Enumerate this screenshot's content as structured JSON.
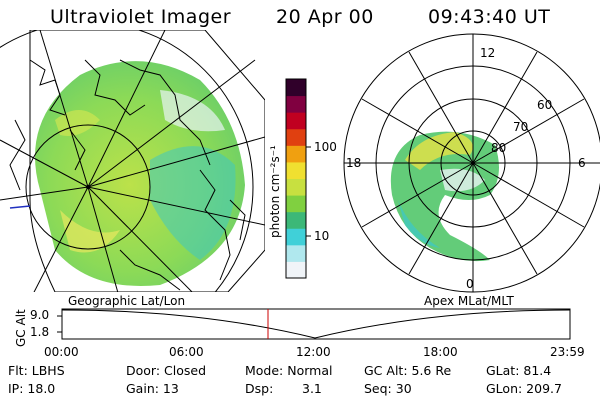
{
  "header": {
    "instrument": "Ultraviolet Imager",
    "date": "20 Apr 00",
    "time": "09:43:40 UT"
  },
  "colorbar": {
    "unit_label": "photon cm⁻²s⁻¹",
    "ticks": [
      "100",
      "10"
    ],
    "scale": "log",
    "colors": [
      "#f0f4f8",
      "#b0e8ee",
      "#40d0d8",
      "#3cb878",
      "#80d040",
      "#c8e040",
      "#f0e030",
      "#f0a010",
      "#e04010",
      "#c00020",
      "#800040",
      "#30002a"
    ]
  },
  "left_map": {
    "label": "Geographic Lat/Lon",
    "emission_colors": [
      "#7fd650",
      "#b8e040",
      "#e8e860",
      "#40c8c0"
    ]
  },
  "right_polar": {
    "label": "Apex MLat/MLT",
    "mlt_labels": {
      "top": "12",
      "left": "18",
      "right": "6",
      "bottom": "0"
    },
    "lat_labels": [
      "60",
      "70",
      "80"
    ]
  },
  "altitude_plot": {
    "ylabel": "GC Alt",
    "yticks": [
      "9.0",
      "1.8"
    ],
    "xticks": [
      "00:00",
      "06:00",
      "12:00",
      "18:00",
      "23:59"
    ],
    "current_time_color": "#cc0000"
  },
  "footer": {
    "flt": "Flt: LBHS",
    "ip": "IP: 18.0",
    "door": "Door: Closed",
    "gain": "Gain: 13",
    "mode": "Mode: Normal",
    "dsp_label": "Dsp:",
    "dsp_value": "3.1",
    "gcalt": "GC Alt: 5.6 Re",
    "seq": "Seq: 30",
    "glat": "GLat:  81.4",
    "glon": "GLon: 209.7"
  }
}
